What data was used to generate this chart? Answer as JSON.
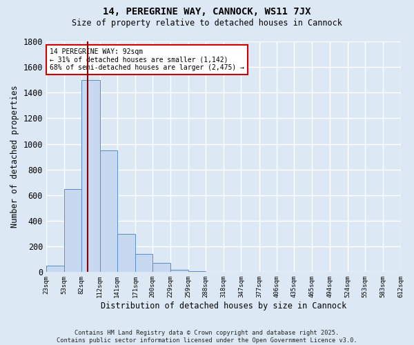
{
  "title_line1": "14, PEREGRINE WAY, CANNOCK, WS11 7JX",
  "title_line2": "Size of property relative to detached houses in Cannock",
  "xlabel": "Distribution of detached houses by size in Cannock",
  "ylabel": "Number of detached properties",
  "bin_edges": [
    23,
    53,
    82,
    112,
    141,
    171,
    200,
    229,
    259,
    288,
    318,
    347,
    377,
    406,
    435,
    465,
    494,
    524,
    553,
    583,
    612
  ],
  "bar_heights": [
    50,
    650,
    1500,
    950,
    300,
    140,
    70,
    20,
    5,
    2,
    1,
    0,
    0,
    0,
    0,
    0,
    0,
    0,
    0,
    0
  ],
  "bar_color": "#c6d9f0",
  "bar_edge_color": "#5b8cc8",
  "bg_color": "#dce9f5",
  "grid_color": "#ffffff",
  "property_size": 92,
  "vline_color": "#8b0000",
  "ylim": [
    0,
    1800
  ],
  "annotation_text": "14 PEREGRINE WAY: 92sqm\n← 31% of detached houses are smaller (1,142)\n68% of semi-detached houses are larger (2,475) →",
  "annotation_box_color": "#ffffff",
  "annotation_border_color": "#cc0000",
  "footnote1": "Contains HM Land Registry data © Crown copyright and database right 2025.",
  "footnote2": "Contains public sector information licensed under the Open Government Licence v3.0.",
  "tick_labels": [
    "23sqm",
    "53sqm",
    "82sqm",
    "112sqm",
    "141sqm",
    "171sqm",
    "200sqm",
    "229sqm",
    "259sqm",
    "288sqm",
    "318sqm",
    "347sqm",
    "377sqm",
    "406sqm",
    "435sqm",
    "465sqm",
    "494sqm",
    "524sqm",
    "553sqm",
    "583sqm",
    "612sqm"
  ]
}
